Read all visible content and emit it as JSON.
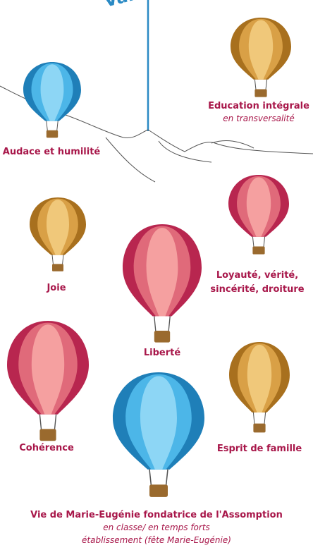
{
  "heading": "Valeurs",
  "balloons": [
    {
      "label": "Education intégrale",
      "note": "en transversalité"
    },
    {
      "label": "Audace et humilité"
    },
    {
      "label": "Joie"
    },
    {
      "label_lines": [
        "Loyauté, vérité,",
        "sincérité, droiture"
      ]
    },
    {
      "label": "Liberté"
    },
    {
      "label": "Cohérence"
    },
    {
      "label": "Esprit de famille"
    },
    {
      "label": "Vie de Marie-Eugénie fondatrice de l'Assomption",
      "note_lines": [
        "en classe/ en temps forts",
        "établissement (fête Marie-Eugénie)"
      ]
    }
  ]
}
